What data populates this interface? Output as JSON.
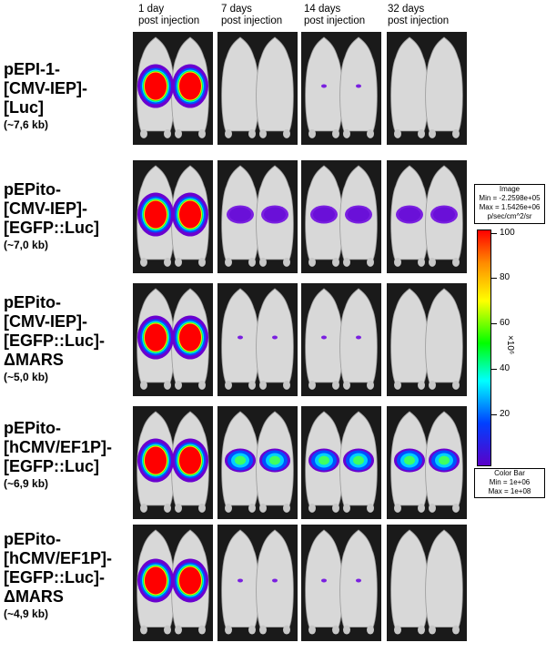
{
  "columns": [
    {
      "line1": "1 day",
      "line2": "post injection"
    },
    {
      "line1": "7 days",
      "line2": "post injection"
    },
    {
      "line1": "14 days",
      "line2": "post injection"
    },
    {
      "line1": "32 days",
      "line2": "post injection"
    }
  ],
  "rows": [
    {
      "lines": [
        "pEPI-1-",
        "[CMV-IEP]-",
        "[Luc]"
      ],
      "size": "(~7,6 kb)",
      "signal_levels": [
        "high",
        "none",
        "trace",
        "none"
      ]
    },
    {
      "lines": [
        "pEPito-",
        "[CMV-IEP]-",
        "[EGFP::Luc]"
      ],
      "size": "(~7,0 kb)",
      "signal_levels": [
        "high",
        "low",
        "low",
        "low"
      ]
    },
    {
      "lines": [
        "pEPito-",
        "[CMV-IEP]-",
        "[EGFP::Luc]-",
        "ΔMARS"
      ],
      "size": "(~5,0 kb)",
      "signal_levels": [
        "high",
        "trace",
        "trace",
        "none"
      ]
    },
    {
      "lines": [
        "pEPito-",
        "[hCMV/EF1P]-",
        "[EGFP::Luc]"
      ],
      "size": "(~6,9 kb)",
      "signal_levels": [
        "high",
        "medium",
        "medium",
        "medium"
      ]
    },
    {
      "lines": [
        "pEPito-",
        "[hCMV/EF1P]-",
        "[EGFP::Luc]-",
        "ΔMARS"
      ],
      "size": "(~4,9 kb)",
      "signal_levels": [
        "high",
        "trace",
        "trace",
        "none"
      ]
    }
  ],
  "image_info": {
    "title": "Image",
    "min": "Min = -2.2598e+05",
    "max": "Max = 1.5426e+06",
    "unit": "p/sec/cm^2/sr"
  },
  "color_scale": {
    "ticks": [
      "100",
      "80",
      "60",
      "40",
      "20"
    ],
    "unit_label": "×10⁶",
    "colors": [
      "#ff0000",
      "#ffff00",
      "#00ff00",
      "#00ffff",
      "#0040ff",
      "#5a00c8"
    ]
  },
  "color_bar_info": {
    "title": "Color Bar",
    "min": "Min = 1e+06",
    "max": "Max = 1e+08"
  }
}
